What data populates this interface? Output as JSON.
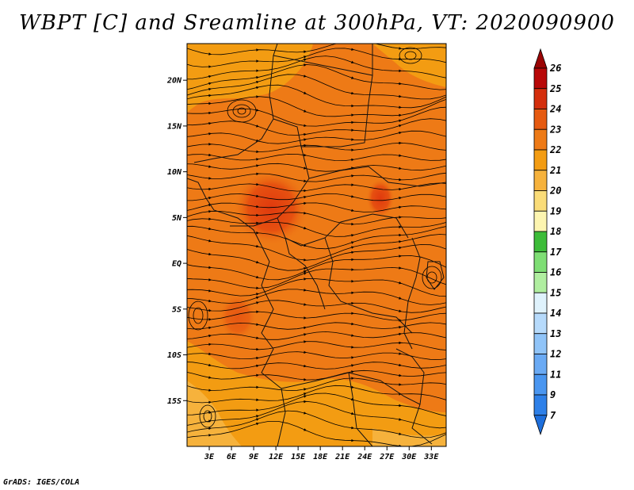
{
  "title": "WBPT [C] and Sreamline at 300hPa, VT: 2020090900",
  "credit": "GrADS: IGES/COLA",
  "chart_data": {
    "type": "heatmap",
    "variables": [
      "WBPT [C]",
      "Sreamline"
    ],
    "level": "300hPa",
    "valid_time": "2020090900",
    "x_ticks": [
      "3E",
      "6E",
      "9E",
      "12E",
      "15E",
      "18E",
      "21E",
      "24E",
      "27E",
      "30E",
      "33E"
    ],
    "x_tick_values": [
      3,
      6,
      9,
      12,
      15,
      18,
      21,
      24,
      27,
      30,
      33
    ],
    "y_ticks": [
      "20N",
      "15N",
      "10N",
      "5N",
      "EQ",
      "5S",
      "10S",
      "15S"
    ],
    "y_tick_values": [
      20,
      15,
      10,
      5,
      0,
      -5,
      -10,
      -15
    ],
    "xlim": [
      0,
      35
    ],
    "ylim": [
      -20,
      24
    ],
    "colorbar": {
      "labels": [
        "7",
        "9",
        "11",
        "12",
        "13",
        "14",
        "15",
        "16",
        "17",
        "18",
        "19",
        "20",
        "21",
        "22",
        "23",
        "24",
        "25",
        "26"
      ],
      "colors": [
        "#1e6fdc",
        "#2e80e8",
        "#4a96f0",
        "#6aaaf4",
        "#90c4f8",
        "#b6dafb",
        "#dff2fc",
        "#b0eea0",
        "#7ede74",
        "#3cbc38",
        "#fdf5b0",
        "#fadc78",
        "#f6b23c",
        "#f39c12",
        "#ee7a16",
        "#e65a10",
        "#d42e0c",
        "#b80808",
        "#9a0404"
      ]
    }
  }
}
